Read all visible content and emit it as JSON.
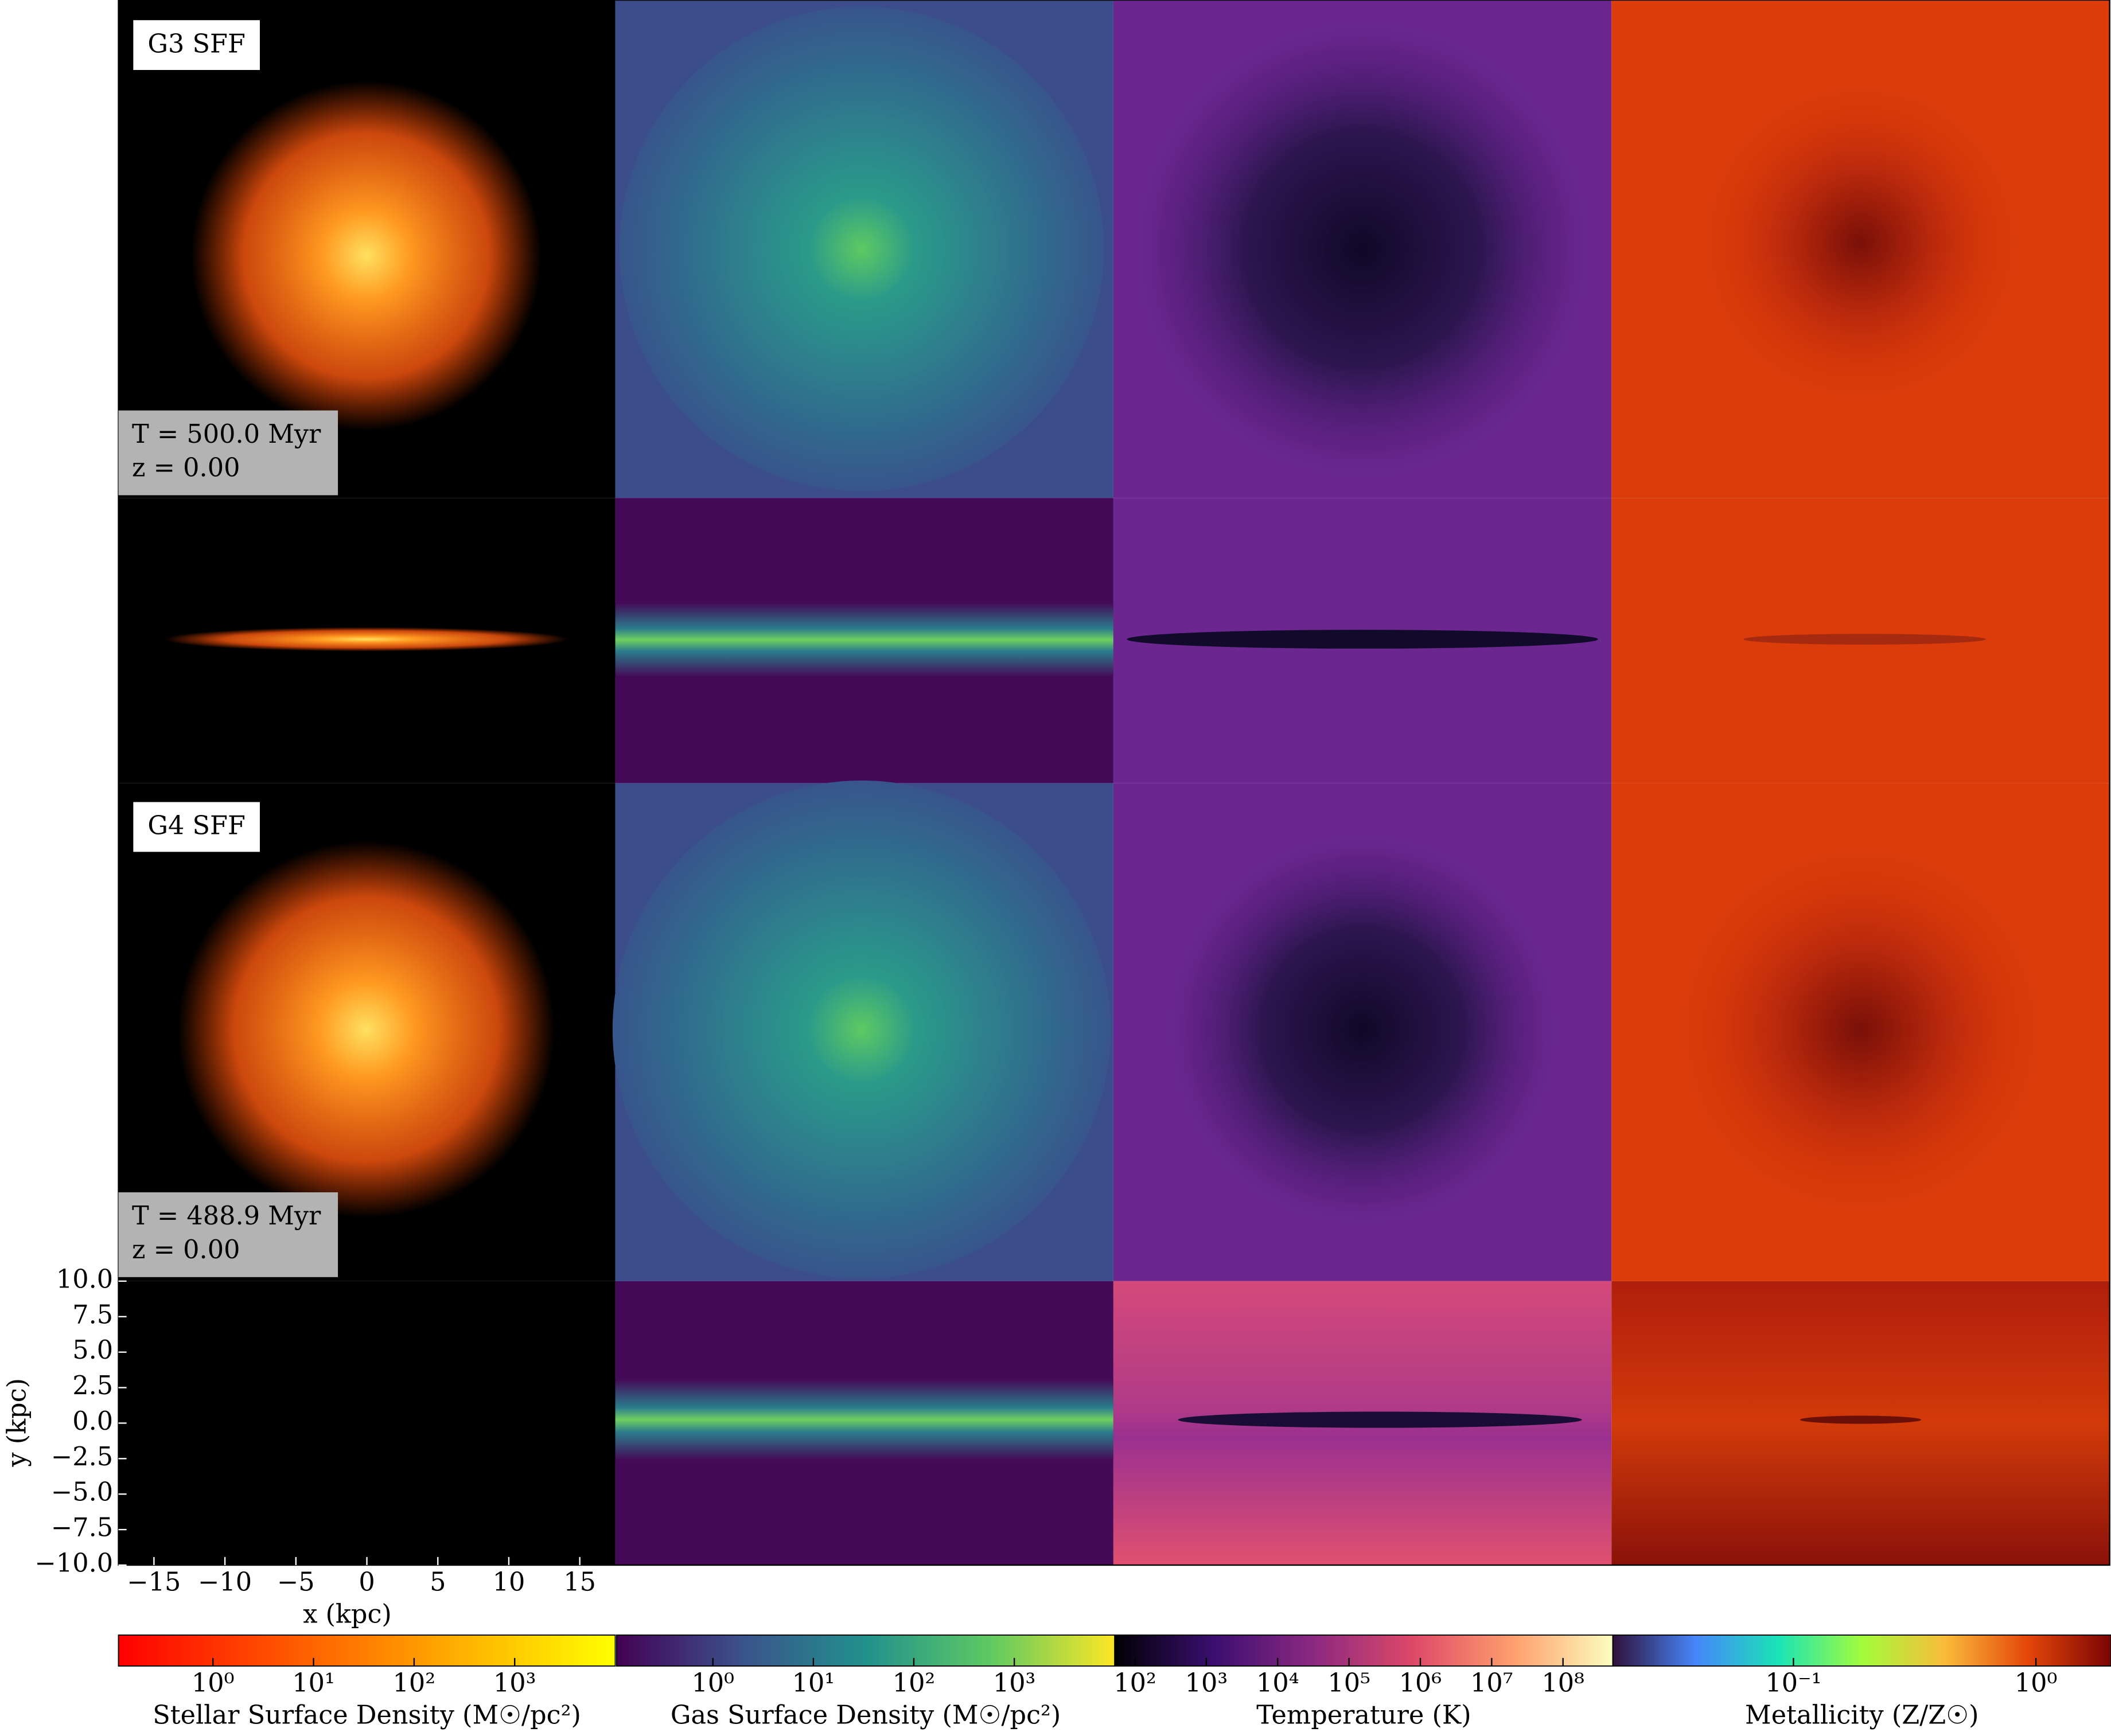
{
  "panel_labels": [
    {
      "name": "G3 SFF",
      "time": "T = 500.0 Myr",
      "redshift": "z = 0.00"
    },
    {
      "name": "G4 SFF",
      "time": "T = 488.9 Myr",
      "redshift": "z = 0.00"
    }
  ],
  "axes": {
    "xlabel": "x  (kpc)",
    "ylabel": "y  (kpc)",
    "xlim": [
      -17.5,
      17.5
    ],
    "ylim": [
      -10,
      10
    ],
    "xticks": [
      {
        "value": -15,
        "label": "−15"
      },
      {
        "value": -10,
        "label": "−10"
      },
      {
        "value": -5,
        "label": "−5"
      },
      0,
      5,
      10,
      15
    ],
    "yticks": [
      {
        "value": 10,
        "label": "10.0"
      },
      {
        "value": 7.5,
        "label": "7.5"
      },
      {
        "value": 5,
        "label": "5.0"
      },
      {
        "value": 2.5,
        "label": "2.5"
      },
      {
        "value": 0,
        "label": "0.0"
      },
      {
        "value": -2.5,
        "label": "−2.5"
      },
      {
        "value": -5,
        "label": "−5.0"
      },
      {
        "value": -7.5,
        "label": "−7.5"
      },
      {
        "value": -10,
        "label": "−10.0"
      }
    ]
  },
  "colorbars": [
    {
      "label": "Stellar Surface Density (M☉/pc²)",
      "log": true,
      "lim": [
        0.115,
        10000
      ],
      "colors": [
        "#ff0000",
        "#ff5500",
        "#ffaa00",
        "#ffff00"
      ],
      "ticks": [
        {
          "value": 1,
          "label": "10⁰"
        },
        {
          "value": 10,
          "label": "10¹"
        },
        {
          "value": 100,
          "label": "10²"
        },
        {
          "value": 1000,
          "label": "10³"
        }
      ]
    },
    {
      "label": "Gas Surface Density (M☉/pc²)",
      "log": true,
      "lim": [
        0.11,
        10000
      ],
      "colors": [
        "#440154",
        "#3b528b",
        "#21918c",
        "#5ec962",
        "#fde725"
      ],
      "ticks": [
        {
          "value": 1,
          "label": "10⁰"
        },
        {
          "value": 10,
          "label": "10¹"
        },
        {
          "value": 100,
          "label": "10²"
        },
        {
          "value": 1000,
          "label": "10³"
        }
      ]
    },
    {
      "label": "Temperature (K)",
      "log": true,
      "lim": [
        52,
        500000000
      ],
      "colors": [
        "#000004",
        "#3b0f70",
        "#8c2981",
        "#de4968",
        "#fe9f6d",
        "#fcfdbf"
      ],
      "ticks": [
        {
          "value": 100,
          "label": "10²"
        },
        {
          "value": 1000,
          "label": "10³"
        },
        {
          "value": 10000,
          "label": "10⁴"
        },
        {
          "value": 100000,
          "label": "10⁵"
        },
        {
          "value": 1000000,
          "label": "10⁶"
        },
        {
          "value": 10000000,
          "label": "10⁷"
        },
        {
          "value": 100000000,
          "label": "10⁸"
        }
      ]
    },
    {
      "label": "Metallicity (Z/Z☉)",
      "log": true,
      "lim": [
        0.018,
        2.04
      ],
      "colors": [
        "#30123b",
        "#4686fb",
        "#1ae4b6",
        "#a2fc3c",
        "#fabb39",
        "#e4460a",
        "#7a0403"
      ],
      "ticks": [
        {
          "value": 0.1,
          "label": "10⁻¹"
        },
        {
          "value": 1,
          "label": "10⁰"
        }
      ]
    }
  ]
}
